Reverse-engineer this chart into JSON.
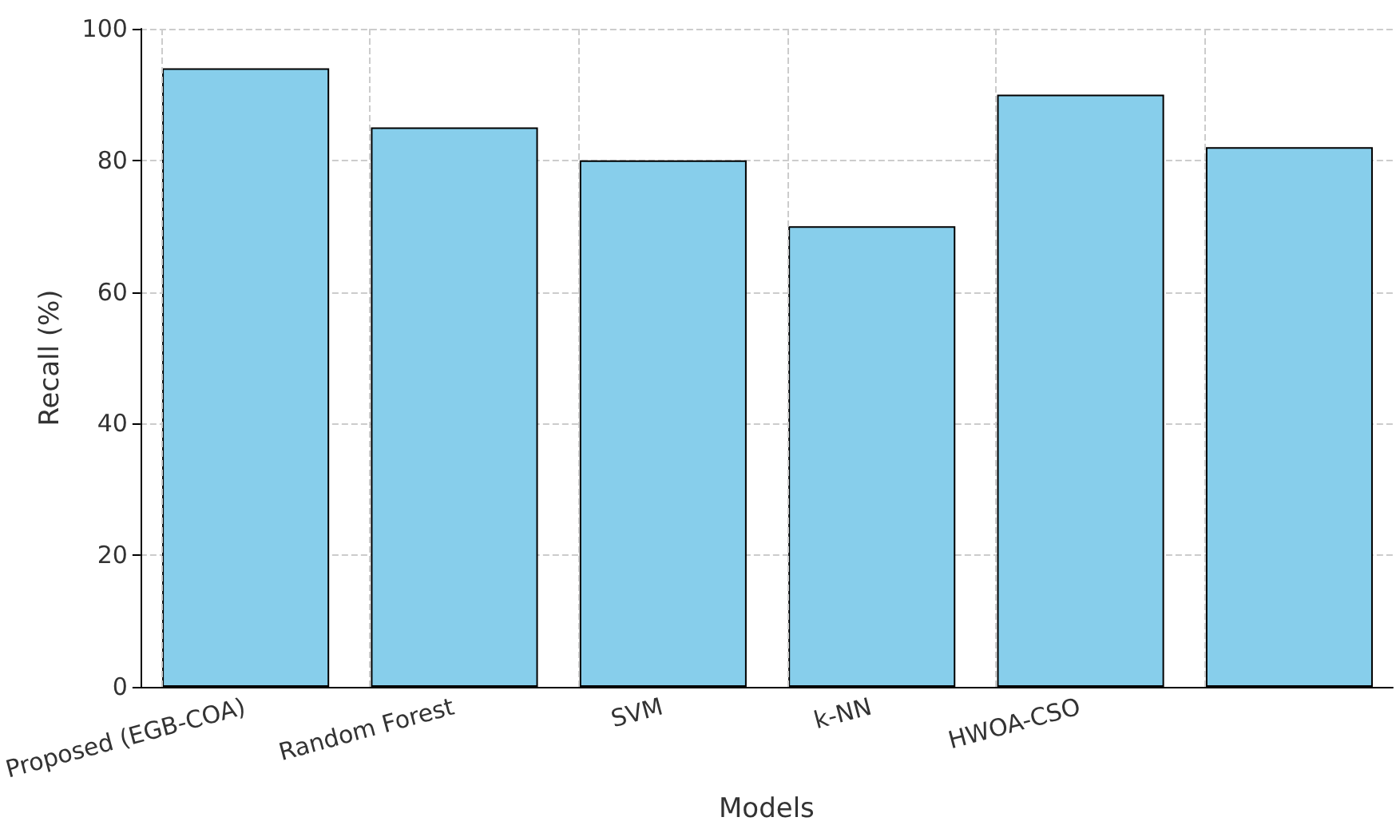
{
  "chart_data": {
    "type": "bar",
    "xlabel": "Models",
    "ylabel": "Recall (%)",
    "categories": [
      "Proposed (EGB-COA)",
      "Random Forest",
      "SVM",
      "k-NN",
      "HWOA-CSO",
      null
    ],
    "values": [
      94,
      85,
      80,
      70,
      90,
      82
    ],
    "color": "#87ceeb",
    "ylim": [
      0,
      100
    ],
    "yticks": [
      0,
      20,
      40,
      60,
      80,
      100
    ],
    "grid": true
  }
}
